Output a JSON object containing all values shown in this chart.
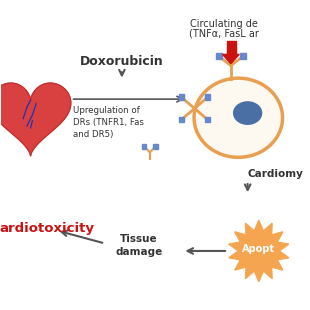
{
  "bg_color": "#ffffff",
  "circulating_line1": "Circulating de",
  "circulating_line2": "(TNFα, FasL ar",
  "cardiotoxicity_text": "ardiotoxicity",
  "doxorubicin_text": "Doxorubicin",
  "upregulation_text": "Upregulation of\nDRs (TNFR1, Fas\nand DR5)",
  "cardiomyo_text": "Cardiomy",
  "tissue_damage_text": "Tissue\ndamage",
  "apoptosis_text": "Apopt",
  "heart_color": "#d94040",
  "heart_outline": "#c03030",
  "vein_color": "#2233aa",
  "cell_color": "#e8a050",
  "nucleus_color": "#4a6fa5",
  "antibody_arm_color": "#e8a050",
  "antibody_square_color": "#6688cc",
  "ligand_color": "#cc1111",
  "apoptosis_fill": "#f5a550",
  "text_red": "#cc1111",
  "text_black": "#222222",
  "text_dark": "#333333",
  "arrow_color": "#555555"
}
